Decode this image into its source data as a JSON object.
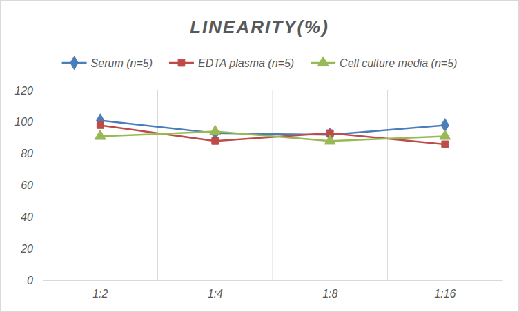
{
  "chart_data": {
    "type": "line",
    "title": "LINEARITY(%)",
    "categories": [
      "1:2",
      "1:4",
      "1:8",
      "1:16"
    ],
    "series": [
      {
        "name": "Serum (n=5)",
        "color": "#4a7ebb",
        "marker": "diamond",
        "values": [
          101,
          93,
          92,
          98
        ]
      },
      {
        "name": "EDTA plasma (n=5)",
        "color": "#be4b48",
        "marker": "square",
        "values": [
          98,
          88,
          93,
          86
        ]
      },
      {
        "name": "Cell culture media (n=5)",
        "color": "#98b954",
        "marker": "triangle",
        "values": [
          91,
          94,
          88,
          91
        ]
      }
    ],
    "ylim": [
      0,
      120
    ],
    "yticks": [
      0,
      20,
      40,
      60,
      80,
      100,
      120
    ],
    "grid": true,
    "legend": "top"
  }
}
